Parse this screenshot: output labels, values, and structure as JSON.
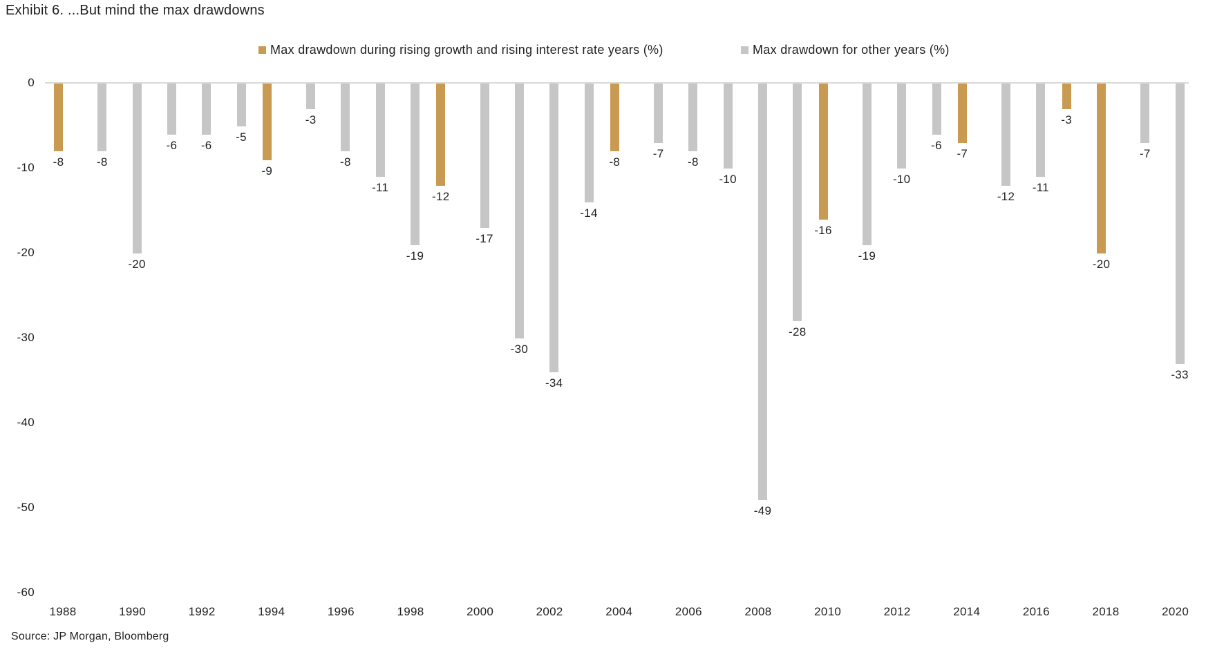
{
  "page": {
    "title": "Exhibit 6. ...But mind the max drawdowns",
    "source": "Source: JP Morgan, Bloomberg"
  },
  "colors": {
    "rising_bar": "#c99a52",
    "other_bar": "#c6c6c6",
    "axis_line": "#d9d9d9",
    "text": "#1f1f1f"
  },
  "legend": {
    "rising": {
      "label": "Max drawdown during rising growth and rising interest rate years (%)",
      "color": "#c99a52"
    },
    "other": {
      "label": "Max drawdown for other years (%)",
      "color": "#c6c6c6"
    }
  },
  "chart_data": {
    "type": "bar",
    "title": "Exhibit 6. ...But mind the max drawdowns",
    "categories": [
      1988,
      1989,
      1990,
      1991,
      1992,
      1993,
      1994,
      1995,
      1996,
      1997,
      1998,
      1999,
      2000,
      2001,
      2002,
      2003,
      2004,
      2005,
      2006,
      2007,
      2008,
      2009,
      2010,
      2011,
      2012,
      2013,
      2014,
      2015,
      2016,
      2017,
      2018,
      2019,
      2020
    ],
    "series": [
      {
        "name": "Max drawdown during rising growth and rising interest rate years (%)",
        "color": "#c99a52",
        "values": [
          -8,
          null,
          null,
          null,
          null,
          null,
          -9,
          null,
          null,
          null,
          null,
          -12,
          null,
          null,
          null,
          null,
          -8,
          null,
          null,
          null,
          null,
          null,
          -16,
          null,
          null,
          null,
          -7,
          null,
          null,
          -3,
          -20,
          null,
          null
        ]
      },
      {
        "name": "Max drawdown for other years (%)",
        "color": "#c6c6c6",
        "values": [
          null,
          -8,
          -20,
          -6,
          -6,
          -5,
          null,
          -3,
          -8,
          -11,
          -19,
          null,
          -17,
          -30,
          -34,
          -14,
          null,
          -7,
          -8,
          -10,
          -49,
          -28,
          null,
          -19,
          -10,
          -6,
          null,
          -12,
          -11,
          null,
          null,
          -7,
          -33
        ]
      }
    ],
    "ylim": [
      -60,
      0
    ],
    "yticks": [
      0,
      -10,
      -20,
      -30,
      -40,
      -50,
      -60
    ],
    "xtick_labels": [
      "1988",
      "1990",
      "1992",
      "1994",
      "1996",
      "1998",
      "2000",
      "2002",
      "2004",
      "2006",
      "2008",
      "2010",
      "2012",
      "2014",
      "2016",
      "2018",
      "2020"
    ],
    "xlabel": "",
    "ylabel": "",
    "grid": false,
    "data_labels": true,
    "legend_position": "top"
  }
}
